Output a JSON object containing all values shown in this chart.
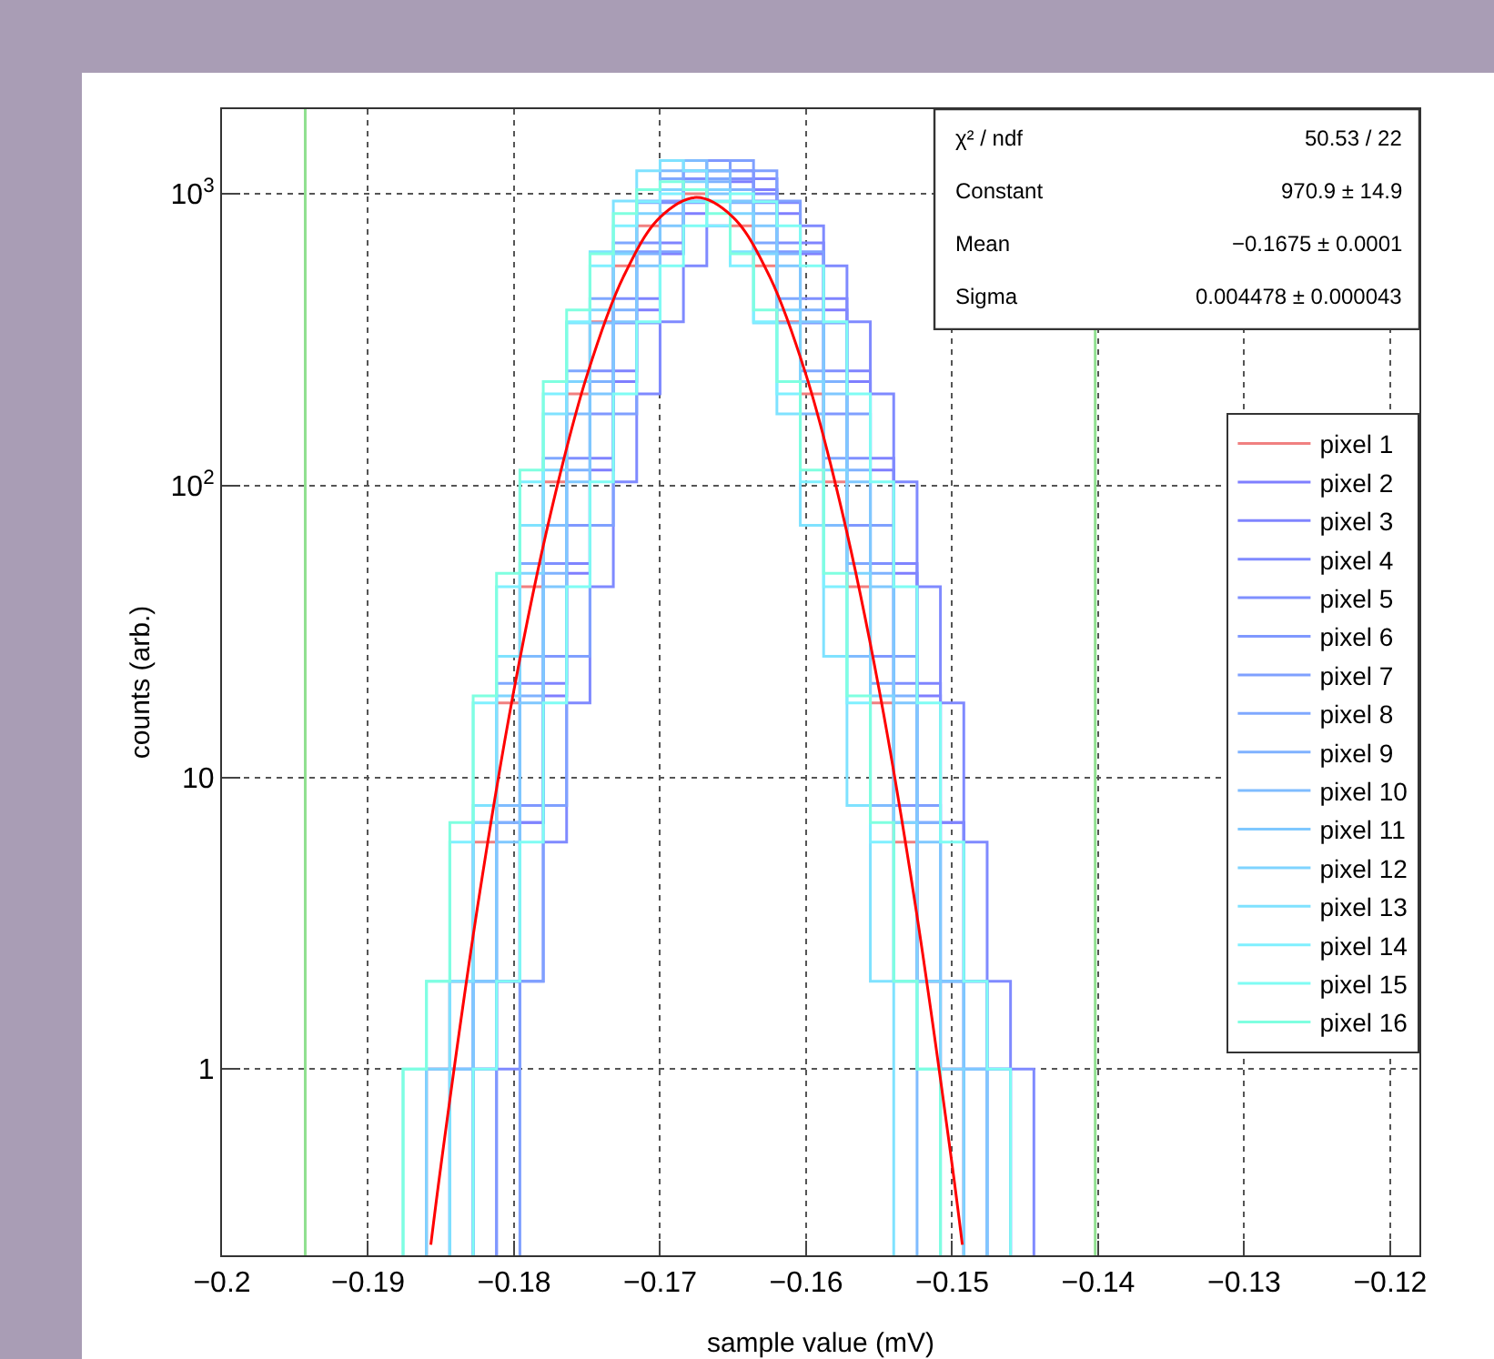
{
  "chart_data": {
    "type": "histogram",
    "xlabel": "sample value (mV)",
    "ylabel": "counts (arb.)",
    "series": [
      {
        "name": "pixel 1",
        "color": "#f08080",
        "bins": [
          -0.186,
          -0.1844,
          -0.1828,
          -0.1812,
          -0.1796,
          -0.178,
          -0.1764,
          -0.1748,
          -0.1732,
          -0.1716,
          -0.17,
          -0.1684,
          -0.1668,
          -0.1652,
          -0.1636,
          -0.162,
          -0.1604,
          -0.1588,
          -0.1572,
          -0.1556,
          -0.154,
          -0.1524,
          -0.1508,
          -0.1492
        ],
        "values": [
          1,
          2,
          6,
          18,
          45,
          103,
          206,
          364,
          566,
          777,
          939,
          1000,
          939,
          777,
          566,
          364,
          206,
          103,
          45,
          18,
          6,
          2,
          1
        ]
      },
      {
        "name": "pixel 2",
        "color": "#7f7fff",
        "bins": [
          -0.1828,
          -0.1812,
          -0.1796,
          -0.178,
          -0.1764,
          -0.1748,
          -0.1732,
          -0.1716,
          -0.17,
          -0.1684,
          -0.1668,
          -0.1652,
          -0.1636,
          -0.162,
          -0.1604,
          -0.1588,
          -0.1572,
          -0.1556,
          -0.154,
          -0.1524,
          -0.1508,
          -0.1492,
          -0.1476,
          -0.146
        ],
        "values": [
          1,
          2,
          7,
          19,
          50,
          113,
          227,
          400,
          623,
          855,
          1033,
          1100,
          1033,
          855,
          623,
          400,
          227,
          113,
          50,
          19,
          7,
          2,
          1
        ]
      },
      {
        "name": "pixel 3",
        "color": "#7f84ff",
        "bins": [
          -0.1828,
          -0.1812,
          -0.1796,
          -0.178,
          -0.1764,
          -0.1748,
          -0.1732,
          -0.1716,
          -0.17,
          -0.1684,
          -0.1668,
          -0.1652,
          -0.1636,
          -0.162,
          -0.1604,
          -0.1588,
          -0.1572,
          -0.1556,
          -0.154,
          -0.1524,
          -0.1508,
          -0.1492,
          -0.1476,
          -0.146
        ],
        "values": [
          1,
          2,
          7,
          21,
          54,
          124,
          247,
          437,
          679,
          932,
          1127,
          1200,
          1127,
          932,
          679,
          437,
          247,
          124,
          54,
          21,
          7,
          2,
          1
        ]
      },
      {
        "name": "pixel 4",
        "color": "#7f8aff",
        "bins": [
          -0.1812,
          -0.1796,
          -0.178,
          -0.1764,
          -0.1748,
          -0.1732,
          -0.1716,
          -0.17,
          -0.1684,
          -0.1668,
          -0.1652,
          -0.1636,
          -0.162,
          -0.1604,
          -0.1588,
          -0.1572,
          -0.1556,
          -0.154,
          -0.1524,
          -0.1508,
          -0.1492,
          -0.1476,
          -0.146,
          -0.1444
        ],
        "values": [
          1,
          2,
          6,
          18,
          45,
          103,
          206,
          364,
          566,
          777,
          939,
          1000,
          939,
          777,
          566,
          364,
          206,
          103,
          45,
          18,
          6,
          2,
          1
        ]
      },
      {
        "name": "pixel 5",
        "color": "#7f90ff",
        "bins": [
          -0.1844,
          -0.1828,
          -0.1812,
          -0.1796,
          -0.178,
          -0.1764,
          -0.1748,
          -0.1732,
          -0.1716,
          -0.17,
          -0.1684,
          -0.1668,
          -0.1652,
          -0.1636,
          -0.162,
          -0.1604,
          -0.1588,
          -0.1572,
          -0.1556,
          -0.154,
          -0.1524,
          -0.1508,
          -0.1492,
          -0.1476
        ],
        "values": [
          1,
          2,
          7,
          21,
          54,
          124,
          247,
          437,
          679,
          932,
          1127,
          1200,
          1127,
          932,
          679,
          437,
          247,
          124,
          54,
          21,
          7,
          2,
          1
        ]
      },
      {
        "name": "pixel 6",
        "color": "#7f98ff",
        "bins": [
          -0.1812,
          -0.1796,
          -0.178,
          -0.1764,
          -0.1748,
          -0.1732,
          -0.1716,
          -0.17,
          -0.1684,
          -0.1668,
          -0.1652,
          -0.1636,
          -0.162,
          -0.1604,
          -0.1588,
          -0.1572,
          -0.1556,
          -0.154,
          -0.1524,
          -0.1508
        ],
        "values": [
          2,
          8,
          26,
          73,
          176,
          361,
          633,
          944,
          1200,
          1300,
          1200,
          944,
          633,
          361,
          176,
          73,
          26,
          8,
          2
        ]
      },
      {
        "name": "pixel 7",
        "color": "#7fa0ff",
        "bins": [
          -0.1796,
          -0.178,
          -0.1764,
          -0.1748,
          -0.1732,
          -0.1716,
          -0.17,
          -0.1684,
          -0.1668,
          -0.1652,
          -0.1636,
          -0.162,
          -0.1604,
          -0.1588,
          -0.1572,
          -0.1556,
          -0.154,
          -0.1524,
          -0.1508,
          -0.1492
        ],
        "values": [
          2,
          8,
          26,
          73,
          176,
          361,
          633,
          944,
          1200,
          1300,
          1200,
          944,
          633,
          361,
          176,
          73,
          26,
          8,
          2
        ]
      },
      {
        "name": "pixel 8",
        "color": "#7fa8ff",
        "bins": [
          -0.186,
          -0.1844,
          -0.1828,
          -0.1812,
          -0.1796,
          -0.178,
          -0.1764,
          -0.1748,
          -0.1732,
          -0.1716,
          -0.17,
          -0.1684,
          -0.1668,
          -0.1652,
          -0.1636,
          -0.162,
          -0.1604,
          -0.1588,
          -0.1572,
          -0.1556,
          -0.154,
          -0.1524,
          -0.1508,
          -0.1492
        ],
        "values": [
          1,
          2,
          7,
          21,
          54,
          124,
          247,
          437,
          679,
          932,
          1127,
          1200,
          1127,
          932,
          679,
          437,
          247,
          124,
          54,
          21,
          7,
          2,
          1
        ]
      },
      {
        "name": "pixel 9",
        "color": "#7fb2ff",
        "bins": [
          -0.1844,
          -0.1828,
          -0.1812,
          -0.1796,
          -0.178,
          -0.1764,
          -0.1748,
          -0.1732,
          -0.1716,
          -0.17,
          -0.1684,
          -0.1668,
          -0.1652,
          -0.1636,
          -0.162,
          -0.1604,
          -0.1588,
          -0.1572,
          -0.1556,
          -0.154,
          -0.1524,
          -0.1508,
          -0.1492,
          -0.1476
        ],
        "values": [
          1,
          2,
          7,
          19,
          50,
          113,
          227,
          400,
          623,
          855,
          1033,
          1100,
          1033,
          855,
          623,
          400,
          227,
          113,
          50,
          19,
          7,
          2,
          1
        ]
      },
      {
        "name": "pixel 10",
        "color": "#7fbcff",
        "bins": [
          -0.1828,
          -0.1812,
          -0.1796,
          -0.178,
          -0.1764,
          -0.1748,
          -0.1732,
          -0.1716,
          -0.17,
          -0.1684,
          -0.1668,
          -0.1652,
          -0.1636,
          -0.162,
          -0.1604,
          -0.1588,
          -0.1572,
          -0.1556,
          -0.154,
          -0.1524
        ],
        "values": [
          2,
          8,
          26,
          73,
          176,
          361,
          633,
          944,
          1200,
          1300,
          1200,
          944,
          633,
          361,
          176,
          73,
          26,
          8,
          2
        ]
      },
      {
        "name": "pixel 11",
        "color": "#7fc8ff",
        "bins": [
          -0.1844,
          -0.1828,
          -0.1812,
          -0.1796,
          -0.178,
          -0.1764,
          -0.1748,
          -0.1732,
          -0.1716,
          -0.17,
          -0.1684,
          -0.1668,
          -0.1652,
          -0.1636,
          -0.162,
          -0.1604,
          -0.1588,
          -0.1572,
          -0.1556,
          -0.154,
          -0.1524,
          -0.1508,
          -0.1492,
          -0.1476
        ],
        "values": [
          1,
          2,
          6,
          18,
          45,
          103,
          206,
          364,
          566,
          777,
          939,
          1000,
          939,
          777,
          566,
          364,
          206,
          103,
          45,
          18,
          6,
          2,
          1
        ]
      },
      {
        "name": "pixel 12",
        "color": "#7fd4ff",
        "bins": [
          -0.186,
          -0.1844,
          -0.1828,
          -0.1812,
          -0.1796,
          -0.178,
          -0.1764,
          -0.1748,
          -0.1732,
          -0.1716,
          -0.17,
          -0.1684,
          -0.1668,
          -0.1652,
          -0.1636,
          -0.162,
          -0.1604,
          -0.1588,
          -0.1572,
          -0.1556,
          -0.154,
          -0.1524,
          -0.1508,
          -0.1492
        ],
        "values": [
          1,
          2,
          7,
          19,
          50,
          113,
          227,
          400,
          623,
          855,
          1033,
          1100,
          1033,
          855,
          623,
          400,
          227,
          113,
          50,
          19,
          7,
          2,
          1
        ]
      },
      {
        "name": "pixel 13",
        "color": "#7fe2ff",
        "bins": [
          -0.1844,
          -0.1828,
          -0.1812,
          -0.1796,
          -0.178,
          -0.1764,
          -0.1748,
          -0.1732,
          -0.1716,
          -0.17,
          -0.1684,
          -0.1668,
          -0.1652,
          -0.1636,
          -0.162,
          -0.1604,
          -0.1588,
          -0.1572,
          -0.1556,
          -0.154
        ],
        "values": [
          2,
          8,
          26,
          73,
          176,
          361,
          633,
          944,
          1200,
          1300,
          1200,
          944,
          633,
          361,
          176,
          73,
          26,
          8,
          2
        ]
      },
      {
        "name": "pixel 14",
        "color": "#7ff0ff",
        "bins": [
          -0.1876,
          -0.186,
          -0.1844,
          -0.1828,
          -0.1812,
          -0.1796,
          -0.178,
          -0.1764,
          -0.1748,
          -0.1732,
          -0.1716,
          -0.17,
          -0.1684,
          -0.1668,
          -0.1652,
          -0.1636,
          -0.162,
          -0.1604,
          -0.1588,
          -0.1572,
          -0.1556,
          -0.154,
          -0.1524,
          -0.1508
        ],
        "values": [
          1,
          2,
          6,
          18,
          45,
          103,
          206,
          364,
          566,
          777,
          939,
          1000,
          939,
          777,
          566,
          364,
          206,
          103,
          45,
          18,
          6,
          2,
          1
        ]
      },
      {
        "name": "pixel 15",
        "color": "#7ffcf4",
        "bins": [
          -0.1828,
          -0.1812,
          -0.1796,
          -0.178,
          -0.1764,
          -0.1748,
          -0.1732,
          -0.1716,
          -0.17,
          -0.1684,
          -0.1668,
          -0.1652,
          -0.1636,
          -0.162,
          -0.1604,
          -0.1588,
          -0.1572,
          -0.1556,
          -0.154,
          -0.1524,
          -0.1508,
          -0.1492,
          -0.1476,
          -0.146
        ],
        "values": [
          1,
          2,
          6,
          18,
          45,
          103,
          206,
          364,
          566,
          777,
          939,
          1000,
          939,
          777,
          566,
          364,
          206,
          103,
          45,
          18,
          6,
          2,
          1
        ]
      },
      {
        "name": "pixel 16",
        "color": "#7fffe0",
        "bins": [
          -0.1876,
          -0.186,
          -0.1844,
          -0.1828,
          -0.1812,
          -0.1796,
          -0.178,
          -0.1764,
          -0.1748,
          -0.1732,
          -0.1716,
          -0.17,
          -0.1684,
          -0.1668,
          -0.1652,
          -0.1636,
          -0.162,
          -0.1604,
          -0.1588,
          -0.1572,
          -0.1556,
          -0.154,
          -0.1524,
          -0.1508
        ],
        "values": [
          1,
          2,
          7,
          19,
          50,
          113,
          227,
          400,
          623,
          855,
          1033,
          1100,
          1033,
          855,
          623,
          400,
          227,
          113,
          50,
          19,
          7,
          2,
          1
        ]
      },
      {
        "type": "line",
        "color": "#ff0000",
        "x": [
          -0.1857,
          -0.185,
          -0.1825,
          -0.18,
          -0.1775,
          -0.175,
          -0.1725,
          -0.17,
          -0.1675,
          -0.165,
          -0.1625,
          -0.16,
          -0.1575,
          -0.155,
          -0.1525,
          -0.15,
          -0.1493
        ],
        "values": [
          0.25,
          0.47,
          3.6,
          20,
          80,
          239,
          521,
          831,
          971,
          831,
          521,
          239,
          80,
          20,
          3.6,
          0.47,
          0.25
        ]
      }
    ],
    "xlim": [
      -0.2,
      -0.118
    ],
    "xticks": [
      {
        "value": -0.2,
        "label": "−0.2"
      },
      {
        "value": -0.19,
        "label": "−0.19"
      },
      {
        "value": -0.18,
        "label": "−0.18"
      },
      {
        "value": -0.17,
        "label": "−0.17"
      },
      {
        "value": -0.16,
        "label": "−0.16"
      },
      {
        "value": -0.15,
        "label": "−0.15"
      },
      {
        "value": -0.14,
        "label": "−0.14"
      },
      {
        "value": -0.13,
        "label": "−0.13"
      },
      {
        "value": -0.12,
        "label": "−0.12"
      }
    ],
    "ylim": [
      0.23,
      1950
    ],
    "log": true,
    "yticks": [
      1,
      10,
      {
        "value": 100,
        "label": "10$^{2}$"
      },
      {
        "value": 1000,
        "label": "10$^{3}$"
      }
    ],
    "ref_lines": [
      {
        "axis": "x",
        "value": -0.1943,
        "color": "#90e090"
      },
      {
        "axis": "x",
        "value": -0.1402,
        "color": "#90e090"
      }
    ],
    "annotations": [
      "χ² / ndf",
      "50.53 / 22",
      "Constant",
      "970.9 ± 14.9",
      "Mean",
      "−0.1675 ± 0.0001",
      "Sigma",
      "0.004478 ± 0.000043"
    ],
    "grid": true,
    "legend": "right",
    "marker": "none",
    "line_style": "solid"
  }
}
